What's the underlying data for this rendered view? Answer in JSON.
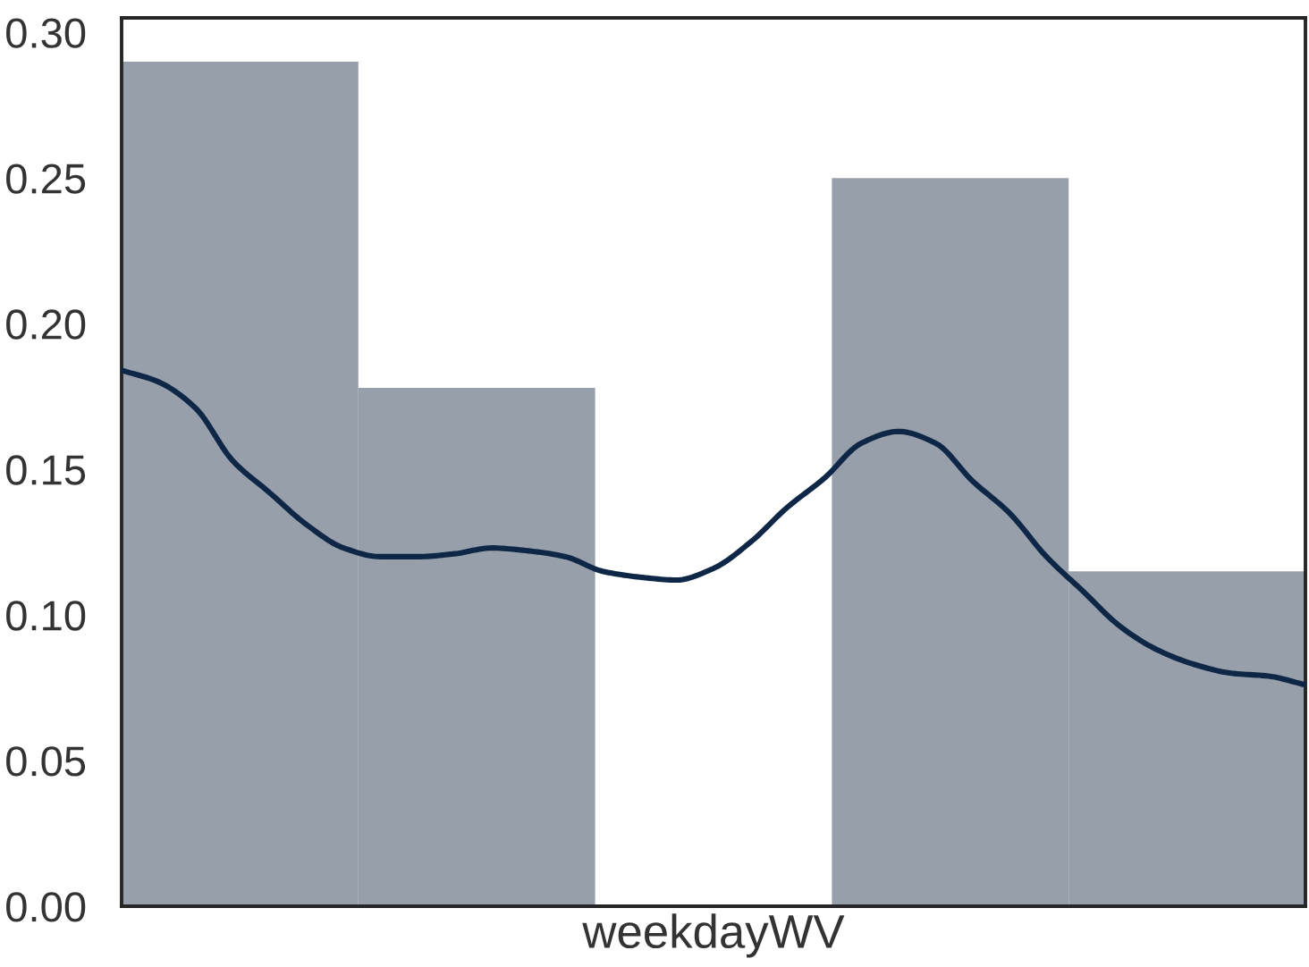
{
  "chart_data": [
    {
      "type": "bar",
      "xlabel": "weekdayWV",
      "categories": [
        null,
        null,
        null,
        null,
        null
      ],
      "color": "#97a0aa",
      "values": [
        0.29,
        0.178,
        0,
        0.25,
        0.115
      ],
      "ylim": [
        0,
        0.305
      ],
      "yticks": [
        {
          "value": 0,
          "label": "0.00"
        },
        {
          "value": 0.05,
          "label": "0.05"
        },
        {
          "value": 0.1,
          "label": "0.10"
        },
        {
          "value": 0.15,
          "label": "0.15"
        },
        {
          "value": 0.2,
          "label": "0.20"
        },
        {
          "value": 0.25,
          "label": "0.25"
        },
        {
          "value": 0.3,
          "label": "0.30"
        }
      ],
      "tick_labels": "y",
      "grid": false
    },
    {
      "type": "line",
      "color": "#0f2747",
      "line_style": "solid",
      "ylim": [
        0,
        0.305
      ],
      "tick_labels": false,
      "categories": [
        null,
        null,
        null,
        null,
        null,
        null,
        null,
        null,
        null,
        null,
        null,
        null,
        null,
        null,
        null,
        null,
        null,
        null,
        null,
        null,
        null,
        null,
        null,
        null,
        null,
        null,
        null,
        null,
        null,
        null,
        null,
        null,
        null
      ],
      "values": [
        0.184,
        0.18,
        0.171,
        0.153,
        0.142,
        0.131,
        0.123,
        0.12,
        0.12,
        0.121,
        0.123,
        0.122,
        0.12,
        0.115,
        0.113,
        0.112,
        0.116,
        0.125,
        0.137,
        0.147,
        0.159,
        0.163,
        0.159,
        0.146,
        0.135,
        0.12,
        0.108,
        0.096,
        0.088,
        0.083,
        0.08,
        0.079,
        0.076
      ]
    }
  ]
}
